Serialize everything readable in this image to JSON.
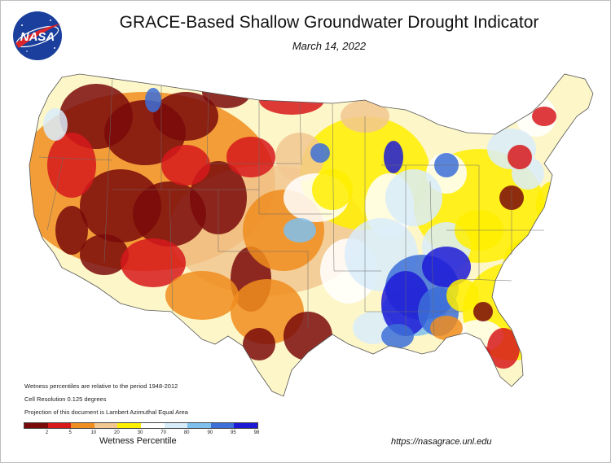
{
  "title": "GRACE-Based Shallow Groundwater Drought Indicator",
  "date": "March 14, 2022",
  "logo_text": "NASA",
  "notes": [
    "Wetness percentiles are relative to the period 1948-2012",
    "Cell Resolution 0.125 degrees",
    "Projection of this document is Lambert Azimuthal Equal Area"
  ],
  "legend": {
    "title": "Wetness Percentile",
    "colors": [
      "#7a0a0a",
      "#d7191c",
      "#f08d1f",
      "#f2c790",
      "#ffef00",
      "#ffffff",
      "#d9ecfa",
      "#7ec0ee",
      "#3c6fd8",
      "#1d1ad6"
    ],
    "tick_labels": [
      "2",
      "5",
      "10",
      "20",
      "30",
      "70",
      "80",
      "90",
      "95",
      "98"
    ]
  },
  "url": "https://nasagrace.unl.edu",
  "map_colors": {
    "land": "#ffffff",
    "border": "#6b6b6b",
    "water": "#ffffff"
  }
}
